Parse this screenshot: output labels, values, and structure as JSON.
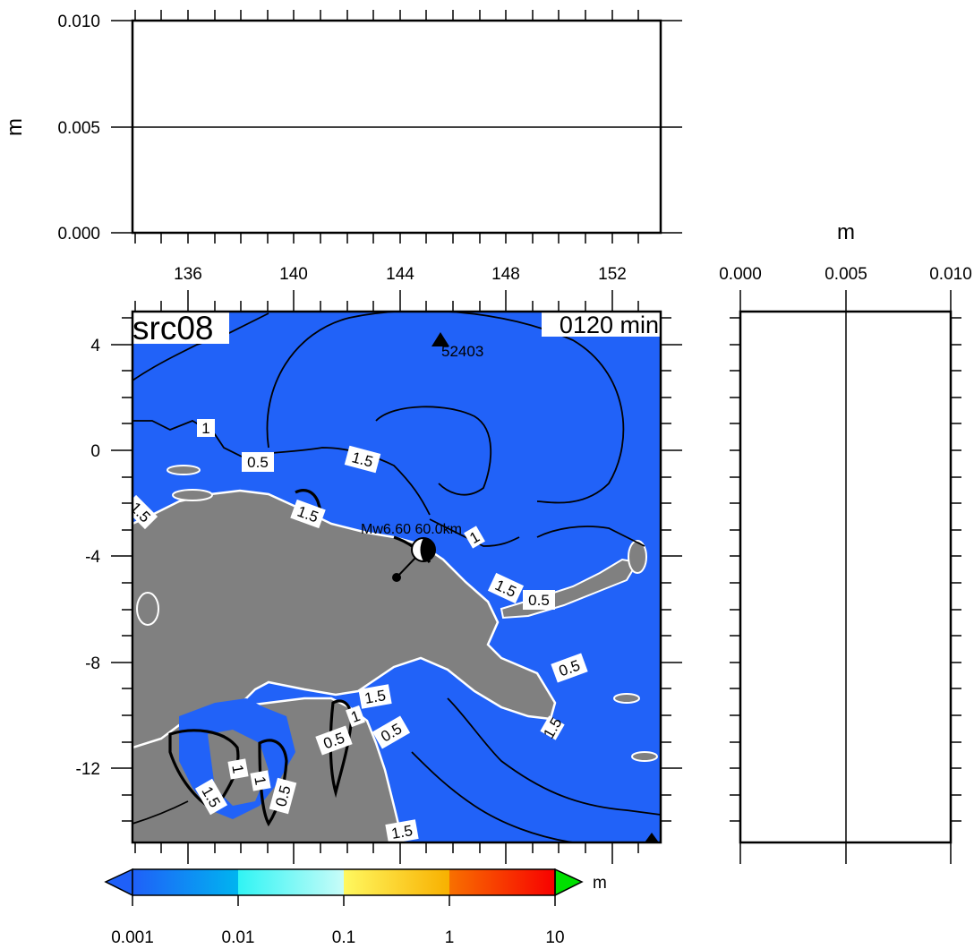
{
  "top_panel": {
    "ylabel": "m",
    "yticks": [
      "0.010",
      "0.005",
      "0.000"
    ],
    "xticks": [
      "136",
      "140",
      "144",
      "148",
      "152"
    ]
  },
  "right_panel": {
    "xlabel": "m",
    "xticks": [
      "0.000",
      "0.005",
      "0.010"
    ]
  },
  "map": {
    "source_label": "src08",
    "time_label": "0120 min",
    "station_label": "52403",
    "event_label": "Mw6.60  60.0km",
    "yticks": [
      "4",
      "0",
      "-4",
      "-8",
      "-12"
    ],
    "contour_labels": {
      "c1": "1",
      "c2": "0.5",
      "c3": "1.5",
      "c4": "1.5",
      "c5": "1.5",
      "c6": "1",
      "c7": "1.5",
      "c8": "0.5",
      "c9": "0.5",
      "c10": "1.5",
      "c11": "0.5",
      "c12": "0.5",
      "c13": "1",
      "c14": "1",
      "c15": "1.5",
      "c16": "1",
      "c17": "0.5",
      "c18": "1.5",
      "c19": "1.5"
    },
    "colors": {
      "ocean": "#2162f8",
      "land": "#808080"
    }
  },
  "colorbar": {
    "unit": "m",
    "tick_labels": [
      "0.001",
      "0.01",
      "0.1",
      "1",
      "10"
    ],
    "colors": [
      "#2162f8",
      "#00b8f0",
      "#3cf8f8",
      "#fff050",
      "#f8a800",
      "#f83800",
      "#00e000"
    ]
  }
}
